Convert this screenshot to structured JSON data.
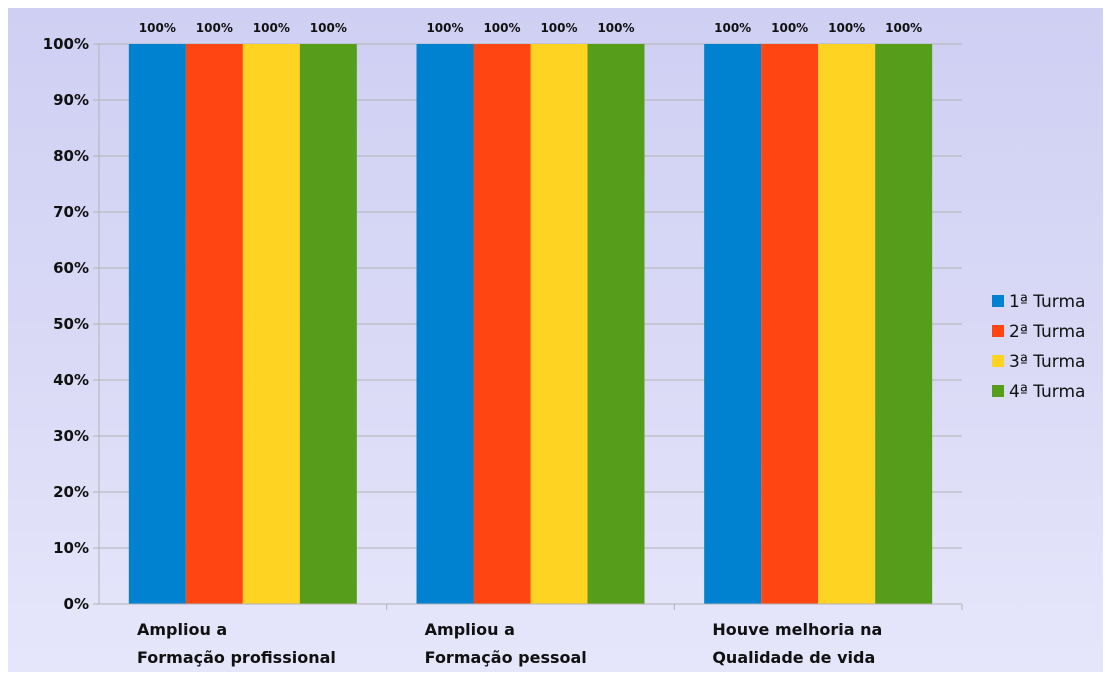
{
  "chart_data": {
    "type": "bar",
    "categories": [
      [
        "Ampliou a",
        "Formação profissional"
      ],
      [
        "Ampliou a",
        "Formação pessoal"
      ],
      [
        "Houve melhoria na",
        "Qualidade de vida"
      ]
    ],
    "series": [
      {
        "name": "1ª Turma",
        "color": "#0082d0",
        "values": [
          100,
          100,
          100
        ]
      },
      {
        "name": "2ª Turma",
        "color": "#ff4512",
        "values": [
          100,
          100,
          100
        ]
      },
      {
        "name": "3ª Turma",
        "color": "#ffd321",
        "values": [
          100,
          100,
          100
        ]
      },
      {
        "name": "4ª Turma",
        "color": "#579d1c",
        "values": [
          100,
          100,
          100
        ]
      }
    ],
    "data_labels": "100%",
    "y_ticks": [
      "0%",
      "10%",
      "20%",
      "30%",
      "40%",
      "50%",
      "60%",
      "70%",
      "80%",
      "90%",
      "100%"
    ],
    "ylim": [
      0,
      100
    ],
    "grid": true,
    "legend": "right",
    "title": "",
    "xlabel": "",
    "ylabel": ""
  }
}
